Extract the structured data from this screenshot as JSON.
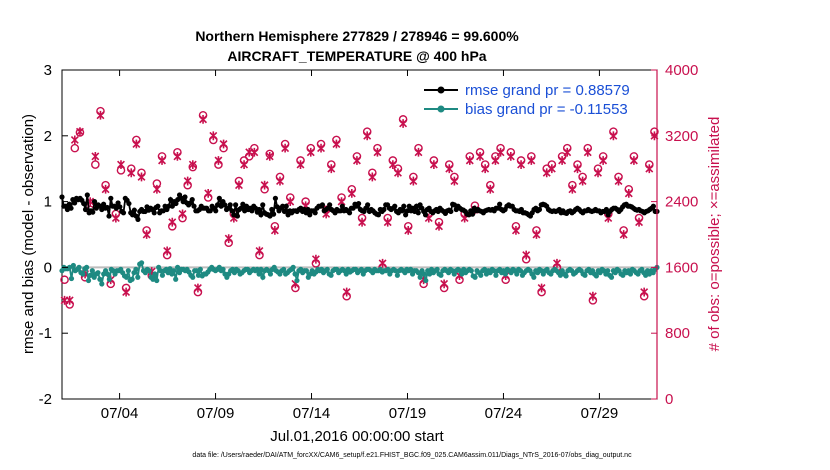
{
  "chart_data": {
    "type": "line",
    "title": "Northern Hemisphere 277829 / 278946 = 99.600%",
    "subtitle": "AIRCRAFT_TEMPERATURE @ 400 hPa",
    "xlabel": "Jul.01,2016 00:00:00 start",
    "ylabel": "rmse and bias (model - observation)",
    "ylabel_right": "# of obs: o=possible; ×=assimilated",
    "footnote": "data file: /Users/raeder/DAI/ATM_forcXX/CAM6_setup/f.e21.FHIST_BGC.f09_025.CAM6assim.011/Diags_NTrS_2016-07/obs_diag_output.nc",
    "ylim": [
      -2,
      3
    ],
    "ylim_right": [
      0,
      4000
    ],
    "x_range_days": [
      0,
      31
    ],
    "x_ticks": [
      {
        "day": 3,
        "label": "07/04"
      },
      {
        "day": 8,
        "label": "07/09"
      },
      {
        "day": 13,
        "label": "07/14"
      },
      {
        "day": 18,
        "label": "07/19"
      },
      {
        "day": 23,
        "label": "07/24"
      },
      {
        "day": 28,
        "label": "07/29"
      }
    ],
    "y_ticks": [
      "3",
      "2",
      "1",
      "0",
      "-1",
      "-2"
    ],
    "y_ticks_right": [
      "4000",
      "3200",
      "2400",
      "1600",
      "800",
      "0"
    ],
    "legend": [
      "rmse grand pr = 0.88579",
      "bias grand pr = -0.11553"
    ],
    "grid": false,
    "x_step_days": 0.25,
    "series": [
      {
        "name": "rmse",
        "color": "#000000",
        "marker": "dot",
        "values": [
          1.07,
          0.93,
          0.93,
          0.88,
          0.96,
          0.9,
          1.03,
          0.98,
          1.05,
          1.03,
          1.05,
          1.02,
          0.97,
          0.88,
          1.1,
          0.83,
          0.86,
          0.84,
          1.0,
          0.9,
          0.95,
          0.93,
          0.88,
          0.96,
          0.9,
          0.91,
          0.78,
          1.05,
          0.93,
          0.93,
          0.9,
          0.98,
          0.92,
          0.85,
          0.83,
          1.05,
          1.02,
          0.97,
          0.83,
          0.8,
          0.87,
          0.78,
          0.73,
          0.85,
          0.88,
          0.85,
          0.85,
          0.92,
          0.87,
          0.9,
          0.88,
          0.83,
          0.91,
          0.93,
          0.83,
          0.86,
          0.86,
          0.93,
          0.88,
          0.93,
          1.03,
          0.93,
          1.0,
          0.97,
          1.03,
          1.1,
          1.05,
          1.0,
          1.07,
          0.98,
          0.95,
          0.98,
          1.03,
          0.93,
          0.86,
          0.86,
          0.88,
          0.93,
          0.9,
          0.9,
          0.9,
          0.86,
          0.86,
          0.93,
          0.9,
          0.86,
          0.95,
          1.05,
          0.93,
          1.0,
          0.95,
          0.88,
          0.9,
          0.95,
          0.86,
          0.8,
          0.95,
          0.78,
          0.88,
          0.9,
          0.96,
          0.86,
          0.93,
          0.88,
          0.9,
          0.86,
          0.93,
          0.9,
          0.84,
          0.88,
          0.8,
          0.95,
          0.83,
          0.81,
          0.8,
          0.78,
          0.88,
          0.81,
          1.05,
          0.92,
          0.86,
          0.9,
          0.93,
          0.85,
          0.93,
          0.8,
          0.86,
          0.83,
          0.86,
          0.86,
          0.85,
          0.88,
          0.9,
          0.85,
          0.88,
          0.83,
          0.88,
          0.8,
          0.86,
          0.86,
          0.83,
          0.9,
          0.93,
          0.93,
          0.95,
          0.86,
          0.88,
          0.9,
          0.95,
          0.88,
          0.86,
          0.83,
          0.88,
          0.86,
          0.86,
          0.93,
          0.86,
          0.88,
          0.86,
          0.83,
          0.9,
          0.9,
          0.96,
          0.93,
          0.97,
          0.88,
          0.86,
          0.85,
          0.9,
          0.95,
          0.85,
          0.88,
          0.86,
          0.83,
          0.81,
          0.8,
          0.88,
          0.85,
          0.88,
          0.95,
          0.95,
          0.9,
          0.88,
          0.9,
          0.93,
          0.85,
          0.83,
          0.88,
          0.86,
          0.93,
          0.8,
          0.86,
          0.93,
          0.86,
          0.9,
          0.85,
          0.93,
          0.83,
          0.95,
          0.9,
          0.85,
          0.8,
          0.88,
          0.9,
          0.85,
          0.83,
          0.86,
          0.88,
          0.85,
          0.9,
          0.87,
          0.85,
          0.82,
          0.86,
          0.87,
          0.85,
          0.96,
          0.95,
          0.88,
          0.93,
          0.9,
          0.88,
          0.87,
          0.85,
          0.81,
          0.8,
          0.86,
          0.81,
          0.9,
          0.86,
          0.88,
          0.86,
          0.85,
          0.83,
          0.86,
          0.87,
          0.88,
          0.87,
          0.88,
          0.86,
          0.9,
          0.9,
          0.96,
          0.88,
          0.86,
          0.88,
          0.93,
          0.95,
          0.93,
          0.93,
          0.88,
          0.86,
          0.86,
          0.85,
          0.88,
          0.83,
          0.83,
          0.82,
          0.8,
          0.78,
          0.83,
          0.88,
          0.9,
          0.86,
          0.88,
          0.95,
          0.96,
          0.95,
          0.93,
          0.88,
          0.86,
          0.85,
          0.86,
          0.85,
          0.86,
          0.88,
          0.83,
          0.86,
          0.83,
          0.82,
          0.85,
          0.86,
          0.83,
          0.85,
          0.88,
          0.9,
          0.88,
          0.85,
          0.83,
          0.86,
          0.86,
          0.88,
          0.86,
          0.85,
          0.86,
          0.88,
          0.86,
          0.86,
          0.83,
          0.85,
          0.85,
          0.88,
          0.8,
          0.85,
          0.88,
          0.9,
          0.9,
          0.88,
          0.85,
          0.88,
          0.92,
          0.95,
          0.96,
          0.93,
          0.93,
          0.92,
          0.9,
          0.88,
          0.87,
          0.88,
          0.86,
          0.85,
          0.83,
          0.85,
          0.86,
          0.88,
          0.9,
          0.93,
          0.85,
          0.85
        ]
      },
      {
        "name": "bias",
        "color": "#1e8a82",
        "marker": "dot",
        "values": [
          -0.05,
          0.0,
          -0.02,
          -0.02,
          0.0,
          -0.17,
          0.03,
          -0.05,
          -0.03,
          0.0,
          -0.08,
          -0.1,
          -0.02,
          0.0,
          -0.2,
          -0.12,
          -0.05,
          -0.15,
          -0.1,
          -0.08,
          -0.18,
          -0.25,
          -0.1,
          -0.05,
          -0.1,
          -0.18,
          -0.03,
          -0.05,
          -0.1,
          -0.05,
          -0.05,
          -0.03,
          -0.08,
          -0.13,
          -0.15,
          -0.05,
          -0.2,
          -0.18,
          -0.08,
          -0.03,
          -0.15,
          0.05,
          0.07,
          -0.05,
          -0.08,
          -0.03,
          -0.05,
          -0.15,
          -0.18,
          -0.1,
          -0.2,
          0.0,
          -0.05,
          -0.12,
          -0.05,
          -0.03,
          -0.08,
          -0.02,
          -0.1,
          -0.05,
          -0.18,
          0.0,
          -0.08,
          -0.03,
          -0.03,
          -0.05,
          -0.03,
          -0.07,
          -0.12,
          -0.15,
          -0.05,
          -0.05,
          -0.12,
          -0.03,
          -0.13,
          -0.1,
          -0.1,
          -0.07,
          -0.03,
          0.0,
          -0.03,
          -0.05,
          -0.03,
          0.0,
          -0.05,
          -0.03,
          -0.1,
          -0.15,
          -0.1,
          -0.05,
          -0.03,
          -0.08,
          -0.03,
          -0.05,
          -0.1,
          -0.08,
          -0.05,
          -0.03,
          -0.03,
          -0.08,
          -0.05,
          -0.03,
          -0.05,
          -0.03,
          -0.1,
          -0.03,
          -0.15,
          -0.05,
          -0.03,
          -0.05,
          -0.1,
          -0.03,
          0.0,
          -0.05,
          -0.07,
          -0.1,
          -0.05,
          -0.03,
          -0.1,
          -0.08,
          -0.05,
          -0.03,
          0.0,
          -0.1,
          -0.2,
          -0.05,
          -0.03,
          -0.08,
          -0.05,
          -0.05,
          -0.15,
          -0.1,
          -0.05,
          -0.1,
          -0.07,
          -0.03,
          -0.05,
          -0.03,
          -0.08,
          -0.05,
          -0.03,
          -0.1,
          -0.12,
          -0.05,
          -0.03,
          -0.03,
          -0.08,
          -0.05,
          -0.03,
          -0.05,
          -0.1,
          -0.03,
          -0.07,
          -0.05,
          -0.03,
          -0.03,
          -0.08,
          -0.05,
          -0.03,
          -0.1,
          -0.05,
          -0.03,
          -0.03,
          -0.05,
          -0.08,
          -0.03,
          -0.05,
          -0.05,
          -0.03,
          -0.07,
          -0.05,
          -0.05,
          -0.03,
          -0.1,
          -0.05,
          -0.03,
          -0.05,
          -0.12,
          -0.05,
          -0.03,
          -0.05,
          -0.08,
          -0.03,
          -0.05,
          -0.03,
          -0.1,
          -0.05,
          -0.05,
          -0.08,
          -0.15,
          -0.05,
          -0.1,
          -0.2,
          -0.05,
          -0.1,
          -0.03,
          -0.08,
          -0.05,
          -0.03,
          -0.1,
          -0.12,
          -0.05,
          -0.03,
          -0.05,
          -0.08,
          -0.03,
          -0.05,
          -0.1,
          -0.05,
          -0.03,
          -0.05,
          -0.1,
          -0.03,
          -0.08,
          -0.05,
          -0.03,
          -0.05,
          -0.13,
          -0.15,
          -0.05,
          -0.08,
          -0.12,
          -0.05,
          -0.03,
          -0.1,
          -0.05,
          -0.08,
          -0.03,
          -0.05,
          -0.12,
          -0.05,
          -0.03,
          -0.08,
          -0.05,
          -0.1,
          -0.03,
          -0.05,
          -0.08,
          -0.03,
          -0.05,
          -0.1,
          -0.03,
          -0.05,
          -0.12,
          -0.08,
          -0.05,
          -0.03,
          -0.05,
          -0.1,
          -0.15,
          -0.05,
          -0.08,
          -0.03,
          -0.05,
          -0.1,
          -0.05,
          -0.03,
          -0.08,
          -0.1,
          -0.05,
          -0.03,
          -0.05,
          -0.08,
          -0.12,
          -0.05,
          -0.1,
          -0.13,
          -0.05,
          -0.03,
          -0.05,
          -0.1,
          -0.08,
          -0.05,
          -0.03,
          -0.05,
          -0.1,
          -0.12,
          -0.05,
          -0.03,
          -0.08,
          -0.05,
          -0.1,
          -0.13,
          -0.05,
          -0.08,
          -0.03,
          -0.05,
          -0.1,
          -0.05,
          -0.12,
          -0.15,
          -0.05,
          -0.08,
          -0.03,
          -0.05,
          -0.1,
          -0.12,
          -0.05,
          -0.08,
          -0.05,
          -0.1,
          -0.03,
          -0.05,
          -0.08,
          -0.1,
          -0.05,
          -0.03,
          -0.08,
          -0.12,
          -0.05,
          -0.1,
          -0.05,
          -0.08,
          -0.03,
          0.0
        ]
      },
      {
        "name": "possible",
        "color": "#c8104e",
        "marker": "circle",
        "axis": "right",
        "values": [
          1450,
          1150,
          3050,
          3240,
          1480,
          2300,
          2850,
          3500,
          2600,
          1400,
          2250,
          2780,
          1350,
          2800,
          3150,
          2750,
          2050,
          1500,
          2620,
          2950,
          1750,
          2100,
          3000,
          2200,
          2600,
          2820,
          1300,
          3450,
          2450,
          3150,
          2850,
          3050,
          1900,
          2250,
          2650,
          2900,
          2950,
          3050,
          1750,
          2550,
          2980,
          2100,
          2700,
          3100,
          2450,
          1350,
          2900,
          2400,
          3050,
          1650,
          3100,
          2300,
          2850,
          3150,
          2450,
          1250,
          2550,
          2950,
          2200,
          3250,
          2750,
          3050,
          1600,
          2200,
          2900,
          2800,
          3400,
          2100,
          2700,
          3050,
          1400,
          2250,
          2900,
          2150,
          1350,
          2850,
          2700,
          1450,
          2250,
          2950,
          2350,
          3000,
          2850,
          2600,
          2950,
          3050,
          1450,
          3000,
          2100,
          2900,
          1700,
          2950,
          2050,
          1300,
          2800,
          2850,
          1600,
          2950,
          3050,
          2600,
          2850,
          2700,
          3050,
          1200,
          2800,
          2950,
          2250,
          3250,
          2700,
          2050,
          2550,
          2950,
          2200,
          1250,
          2850,
          3250
        ]
      },
      {
        "name": "assimilated",
        "color": "#c8104e",
        "marker": "x",
        "axis": "right",
        "values": [
          1200,
          1200,
          3150,
          3250,
          1520,
          2400,
          2950,
          3450,
          2550,
          1450,
          2200,
          2850,
          1300,
          2750,
          3100,
          2700,
          2000,
          1550,
          2550,
          2900,
          1800,
          2150,
          2950,
          2250,
          2650,
          2850,
          1350,
          3400,
          2500,
          3200,
          2900,
          3100,
          1950,
          2200,
          2600,
          2850,
          3000,
          3000,
          1800,
          2600,
          2950,
          2050,
          2650,
          3050,
          2400,
          1400,
          2850,
          2350,
          3000,
          1700,
          3050,
          2250,
          2800,
          3100,
          2400,
          1300,
          2500,
          2900,
          2150,
          3200,
          2700,
          3000,
          1650,
          2150,
          2850,
          2750,
          3350,
          2050,
          2650,
          3000,
          1450,
          2200,
          2850,
          2100,
          1400,
          2800,
          2650,
          1500,
          2200,
          2900,
          2300,
          2950,
          2800,
          2550,
          2900,
          3000,
          1500,
          2950,
          2050,
          2850,
          1750,
          2900,
          2000,
          1350,
          2750,
          2800,
          1650,
          2900,
          3000,
          2550,
          2800,
          2650,
          3000,
          1250,
          2750,
          2900,
          2200,
          3200,
          2650,
          2000,
          2500,
          2900,
          2150,
          1300,
          2800,
          3200
        ]
      }
    ]
  }
}
